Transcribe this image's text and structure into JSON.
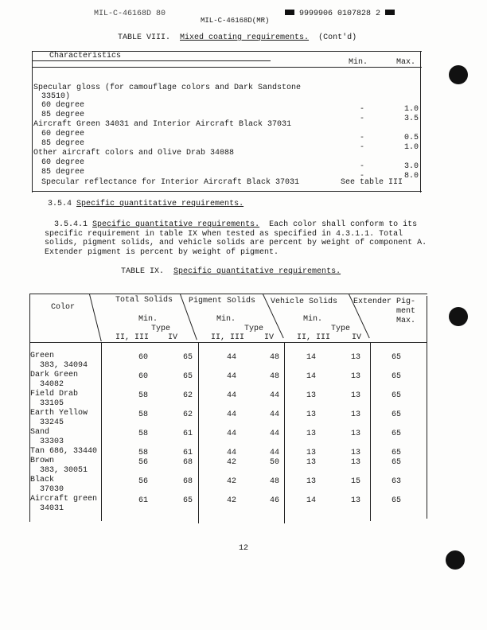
{
  "header": {
    "left_code": "MIL-C-46168D 80",
    "doc_id": "MIL-C-46168D(MR)",
    "barcode_text": "9999906 0107828 2"
  },
  "table8": {
    "label": "TABLE VIII.",
    "title": "Mixed coating requirements.",
    "suffix": "(Cont'd)",
    "columns": [
      "Characteristics",
      "Min.",
      "Max."
    ],
    "rows": [
      {
        "text": "Specular gloss (for camouflage colors and Dark Sandstone",
        "min": "",
        "max": "",
        "indent": 0
      },
      {
        "text": "33510)",
        "min": "",
        "max": "",
        "indent": 1
      },
      {
        "text": "60 degree",
        "min": "-",
        "max": "1.0",
        "indent": 1
      },
      {
        "text": "85 degree",
        "min": "-",
        "max": "3.5",
        "indent": 1
      },
      {
        "text": "Aircraft Green 34031 and Interior Aircraft Black 37031",
        "min": "",
        "max": "",
        "indent": 0
      },
      {
        "text": "60 degree",
        "min": "-",
        "max": "0.5",
        "indent": 1
      },
      {
        "text": "85 degree",
        "min": "-",
        "max": "1.0",
        "indent": 1
      },
      {
        "text": "Other aircraft colors and Olive Drab 34088",
        "min": "",
        "max": "",
        "indent": 0
      },
      {
        "text": "60 degree",
        "min": "-",
        "max": "3.0",
        "indent": 1
      },
      {
        "text": "85 degree",
        "min": "-",
        "max": "8.0",
        "indent": 1
      },
      {
        "text": "Specular reflectance for Interior Aircraft Black 37031",
        "min": "See table III",
        "max": "",
        "indent": 1
      }
    ]
  },
  "section": {
    "heading_num": "3.5.4",
    "heading": "Specific quantitative requirements.",
    "para_num": "3.5.4.1",
    "para_title": "Specific quantitative requirements.",
    "para_lines": [
      "Each color shall conform to its",
      "specific requirement in table IX when tested as specified in 4.3.1.1.  Total",
      "solids, pigment solids, and vehicle solids are percent by weight of component A.",
      "Extender pigment is percent by weight of pigment."
    ]
  },
  "table9": {
    "label": "TABLE IX.",
    "title": "Specific quantitative requirements.",
    "headers": {
      "color": "Color",
      "total": "Total Solids",
      "pigment": "Pigment Solids",
      "vehicle": "Vehicle Solids",
      "extender": [
        "Extender Pig-",
        "ment",
        "Max."
      ],
      "min": "Min.",
      "type": "Type",
      "t23": "II, III",
      "t4": "IV"
    },
    "rows": [
      {
        "name": "Green",
        "code": "383, 34094",
        "v": [
          "60",
          "65",
          "44",
          "48",
          "14",
          "13",
          "65"
        ]
      },
      {
        "name": "Dark Green",
        "code": "34082",
        "v": [
          "60",
          "65",
          "44",
          "48",
          "14",
          "13",
          "65"
        ]
      },
      {
        "name": "Field Drab",
        "code": "33105",
        "v": [
          "58",
          "62",
          "44",
          "44",
          "13",
          "13",
          "65"
        ]
      },
      {
        "name": "Earth Yellow",
        "code": "33245",
        "v": [
          "58",
          "62",
          "44",
          "44",
          "13",
          "13",
          "65"
        ]
      },
      {
        "name": "Sand",
        "code": "33303",
        "v": [
          "58",
          "61",
          "44",
          "44",
          "13",
          "13",
          "65"
        ]
      },
      {
        "name": "Tan 686, 33440",
        "code": "",
        "v": [
          "58",
          "61",
          "44",
          "44",
          "13",
          "13",
          "65"
        ]
      },
      {
        "name": "Brown",
        "code": "383, 30051",
        "v": [
          "56",
          "68",
          "42",
          "50",
          "13",
          "13",
          "65"
        ]
      },
      {
        "name": "Black",
        "code": "37030",
        "v": [
          "56",
          "68",
          "42",
          "48",
          "13",
          "15",
          "63"
        ]
      },
      {
        "name": "Aircraft green",
        "code": "34031",
        "v": [
          "61",
          "65",
          "42",
          "46",
          "14",
          "13",
          "65"
        ]
      }
    ]
  },
  "page_number": "12"
}
